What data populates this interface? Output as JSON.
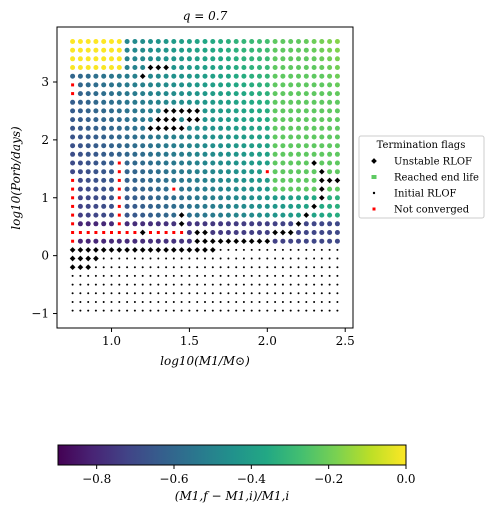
{
  "chart_data": {
    "type": "scatter",
    "title": "q = 0.7",
    "xlabel": "log10(M1/M⊙)",
    "ylabel": "log10(Porb/days)",
    "xlim": [
      0.65,
      2.55
    ],
    "ylim": [
      -1.25,
      3.95
    ],
    "xticks": [
      1.0,
      1.5,
      2.0,
      2.5
    ],
    "yticks": [
      -1,
      0,
      1,
      2,
      3
    ],
    "grid": false,
    "legend": {
      "title": "Termination flags",
      "placement": "right",
      "entries": [
        {
          "label": "Unstable RLOF",
          "marker": "diamond",
          "color": "#000000"
        },
        {
          "label": "Reached end life",
          "marker": "square",
          "color": "#5ec962"
        },
        {
          "label": "Initial RLOF",
          "marker": "point",
          "color": "#000000"
        },
        {
          "label": "Not converged",
          "marker": "square",
          "color": "#ff0000"
        }
      ]
    },
    "grid_axes": {
      "x_start": 0.75,
      "x_step": 0.05,
      "x_count": 35,
      "y_start": -0.95,
      "y_step": 0.15,
      "y_count": 32
    },
    "status_codes": {
      "I": "Initial RLOF",
      "U": "Unstable RLOF",
      "N": "Not converged",
      "E": "Reached end life"
    },
    "status_grid": [
      "EEEEEEEEEEEEEEEEEEEEEEEEEEEEEEEEEEE",
      "EEEEEEEEEEEEEEEEEEEEEEEEEEEEEEEEEEE",
      "EEEEEEEEEEEEEEEEEEEEEEEEEEEEEEEEEEE",
      "EEEEEEEEEEUUUEEEEEEEEEEEEEEEEEEEEEE",
      "EEEEEEEEEUEEEEEEEEEEEEEEEEEEEEEEEEE",
      "NEEEEEEEEEEEEEEEEEEEEEEEEEEEEEEEEEE",
      "NEEEEEEEEEEEEEEEEEEEEEEEEEEEEEEEEEE",
      "EEEEEEEEEEEEEEEEEEEEEEEEEEEEEEEEEEE",
      "EEEEEEEEEEEEUUUUUEEEEEEEEEEEEEEEEEE",
      "EEEEEEEEEEEUUUEUUEEEEEEEEEEEEEEEEEE",
      "EEEEEEEEEEUUUUUEEEEEEEEEEEEEEEEEEEE",
      "EEEEEEEEEEEEEEEEEEEEEEEEEEEEEEEEEEE",
      "EEEEEEEEEEEEEEEEEEEEEEEEEEEEEEEEEEE",
      "EEEEEEEEEEEEEEEEEEEEEEEEEEEEEEEEEEE",
      "EEEEEENEEEEEEEEEEEEEEEEEEEEEEEEUEEE",
      "EEEEEENEEEEEEEEEEEEEEEEEENEEEEEEUEE",
      "NEEEEENEEEEEEEEEEEEEEEEEEEEEEEEEUUU",
      "NEEEEENEEEEEENEEEEEEEEEEEEEEEEEEUEE",
      "NEEEEENEEEEEEEEEEEEEEEEEEEEEEEEEUEE",
      "NEEEEENEEEEEEEEEEEEEEEEEEEEEEEEUEEE",
      "NEEEEENEEEEEEEUEEEEEEEEEEEEEEEUEEEE",
      "NEEEEENEEEEEEEUEEEEEEEEEEEEEEUEEEEE",
      "NNNNNNNNNUNNNNNEUUEEEEEEEEUUUEEEEEE",
      "NEEEEEEEEEEEEEEEUUUUUUUUUUEEEEEEEEE",
      "UUUUUUUUUUUUUUUUUUUIIIIIIIIIIIIIIII",
      "UUUUIIIIIIIIIIIIIIIIIIIIIIIIIIIIIII",
      "UUUIIIIIIIIIIIIIIIIIIIIIIIIIIIIIIII",
      "IIIIIIIIIIIIIIIIIIIIIIIIIIIIIIIIIII",
      "IIIIIIIIIIIIIIIIIIIIIIIIIIIIIIIIIII",
      "IIIIIIIIIIIIIIIIIIIIIIIIIIIIIIIIIII",
      "IIIIIIIIIIIIIIIIIIIIIIIIIIIIIIIIIII",
      "IIIIIIIIIIIIIIIIIIIIIIIIIIIIIIIIIII"
    ],
    "color_rule": "value of (M1,f - M1,i)/M1,i for each E cell, increasing with x and y",
    "colorbar": {
      "label": "(M1,f − M1,i)/M1,i",
      "min": -0.9,
      "max": 0.0,
      "ticks": [
        -0.8,
        -0.6,
        -0.4,
        -0.2,
        0.0
      ],
      "tick_labels": [
        "−0.8",
        "−0.6",
        "−0.4",
        "−0.2",
        "0.0"
      ],
      "colormap": "viridis"
    }
  }
}
